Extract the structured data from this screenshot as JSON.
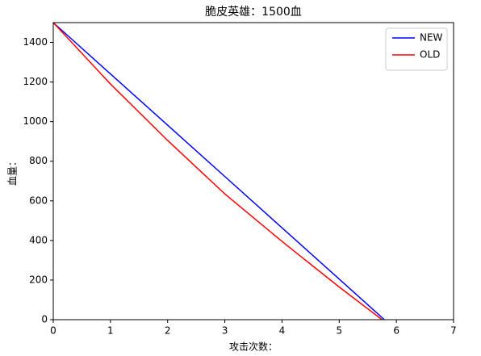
{
  "chart_data": {
    "type": "line",
    "title": "脆皮英雄：1500血",
    "x_label": "攻击次数：",
    "y_label": "血量：",
    "xlim": [
      0,
      7
    ],
    "xticks": [
      0,
      1,
      2,
      3,
      4,
      5,
      6,
      7
    ],
    "ylim": [
      0,
      1500
    ],
    "yticks": [
      0,
      200,
      400,
      600,
      800,
      1000,
      1200,
      1400
    ],
    "legend": "upper right",
    "series": [
      {
        "name": "NEW",
        "color": "#0000ff",
        "x": [
          0,
          1,
          2,
          3,
          4,
          5,
          5.79
        ],
        "values": [
          1500,
          1241,
          982,
          723,
          464,
          205,
          0
        ]
      },
      {
        "name": "OLD",
        "color": "#ff0000",
        "x": [
          0,
          1,
          2,
          3,
          4,
          5,
          5.75
        ],
        "values": [
          1500,
          1190,
          905,
          635,
          395,
          165,
          0
        ]
      }
    ]
  }
}
